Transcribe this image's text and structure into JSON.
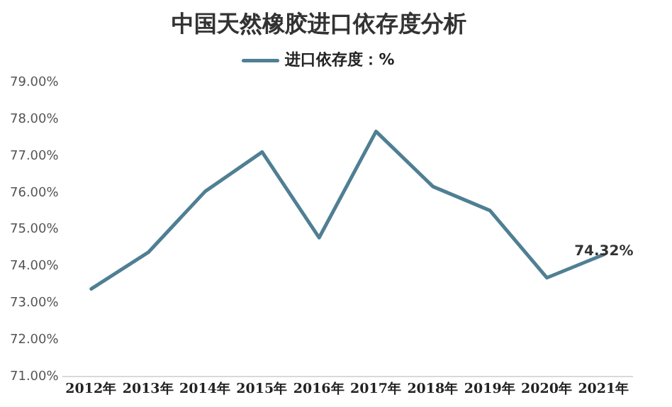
{
  "chart_data": {
    "type": "line",
    "title": "中国天然橡胶进口依存度分析",
    "categories": [
      "2012年",
      "2013年",
      "2014年",
      "2015年",
      "2016年",
      "2017年",
      "2018年",
      "2019年",
      "2020年",
      "2021年"
    ],
    "series": [
      {
        "name": "进口依存度：%",
        "color": "#4f7f93",
        "values": [
          73.39,
          74.38,
          76.04,
          77.11,
          74.78,
          77.67,
          76.17,
          75.52,
          73.69,
          74.32
        ],
        "value_labels": [
          null,
          null,
          null,
          null,
          null,
          null,
          null,
          null,
          null,
          "74.32%"
        ]
      }
    ],
    "ylim": [
      71,
      79
    ],
    "yticks": [
      {
        "value": 71,
        "label": "71.00%"
      },
      {
        "value": 72,
        "label": "72.00%"
      },
      {
        "value": 73,
        "label": "73.00%"
      },
      {
        "value": 74,
        "label": "74.00%"
      },
      {
        "value": 75,
        "label": "75.00%"
      },
      {
        "value": 76,
        "label": "76.00%"
      },
      {
        "value": 77,
        "label": "77.00%"
      },
      {
        "value": 78,
        "label": "78.00%"
      },
      {
        "value": 79,
        "label": "79.00%"
      }
    ],
    "grid": false,
    "legend": "top",
    "marker": "none",
    "line_style": "solid"
  }
}
